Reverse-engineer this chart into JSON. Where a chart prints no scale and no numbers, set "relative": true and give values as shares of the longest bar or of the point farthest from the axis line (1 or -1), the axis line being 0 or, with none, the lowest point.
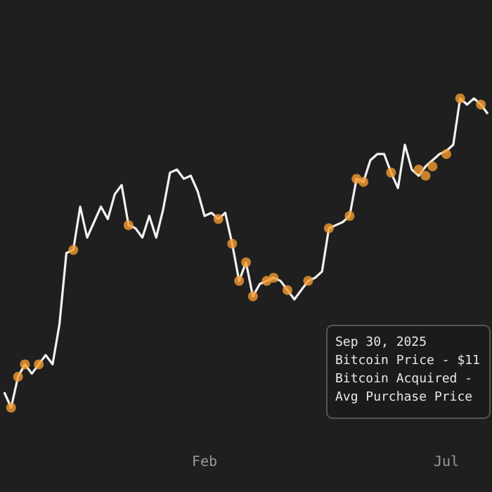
{
  "chart_data": {
    "type": "line",
    "relative": true,
    "grid": false,
    "marker": "none",
    "line_style": "solid",
    "categories": [
      null,
      null,
      null,
      null,
      null,
      null,
      null,
      null,
      null,
      null,
      null,
      null,
      null,
      null,
      null,
      null,
      null,
      null,
      null,
      null,
      null,
      null,
      null,
      null,
      null,
      null,
      null,
      null,
      null,
      "Feb",
      null,
      null,
      null,
      null,
      null,
      null,
      null,
      null,
      null,
      null,
      null,
      null,
      null,
      null,
      null,
      null,
      null,
      null,
      null,
      null,
      null,
      null,
      null,
      null,
      null,
      null,
      null,
      null,
      null,
      null,
      null,
      null,
      null,
      null,
      "Jul",
      null,
      null,
      null,
      null,
      null,
      null
    ],
    "series": [
      {
        "type": "line",
        "color": "#f2f2f2",
        "values": [
          0.05,
          0.0,
          0.1,
          0.14,
          0.11,
          0.14,
          0.17,
          0.14,
          0.27,
          0.5,
          0.51,
          0.65,
          0.55,
          0.6,
          0.65,
          0.61,
          0.69,
          0.72,
          0.59,
          0.58,
          0.55,
          0.62,
          0.55,
          0.64,
          0.76,
          0.77,
          0.74,
          0.75,
          0.7,
          0.62,
          0.63,
          0.61,
          0.63,
          0.53,
          0.41,
          0.47,
          0.36,
          0.4,
          0.41,
          0.42,
          0.41,
          0.38,
          0.35,
          0.38,
          0.41,
          0.42,
          0.44,
          0.58,
          0.59,
          0.6,
          0.62,
          0.74,
          0.73,
          0.8,
          0.82,
          0.82,
          0.76,
          0.71,
          0.85,
          0.77,
          0.75,
          0.78,
          0.8,
          0.82,
          0.83,
          0.85,
          1.0,
          0.98,
          1.0,
          0.98,
          0.95
        ]
      },
      {
        "type": "scatter",
        "marker": "circle",
        "color": "#f39a2f",
        "values": [
          null,
          0.0,
          0.1,
          0.14,
          null,
          0.14,
          null,
          null,
          null,
          null,
          0.51,
          null,
          null,
          null,
          null,
          null,
          null,
          null,
          0.59,
          null,
          null,
          null,
          null,
          null,
          null,
          null,
          null,
          null,
          null,
          null,
          null,
          0.61,
          null,
          0.53,
          0.41,
          0.47,
          0.36,
          null,
          0.41,
          0.42,
          null,
          0.38,
          null,
          null,
          0.41,
          null,
          null,
          0.58,
          null,
          null,
          0.62,
          0.74,
          0.73,
          null,
          null,
          null,
          0.76,
          null,
          null,
          null,
          0.77,
          0.75,
          0.78,
          null,
          0.82,
          null,
          1.0,
          null,
          null,
          0.98,
          null
        ]
      }
    ],
    "annotations": [
      "Sep 30, 2025",
      "Bitcoin Price - $11",
      "Bitcoin Acquired -",
      "Avg Purchase Price"
    ]
  }
}
